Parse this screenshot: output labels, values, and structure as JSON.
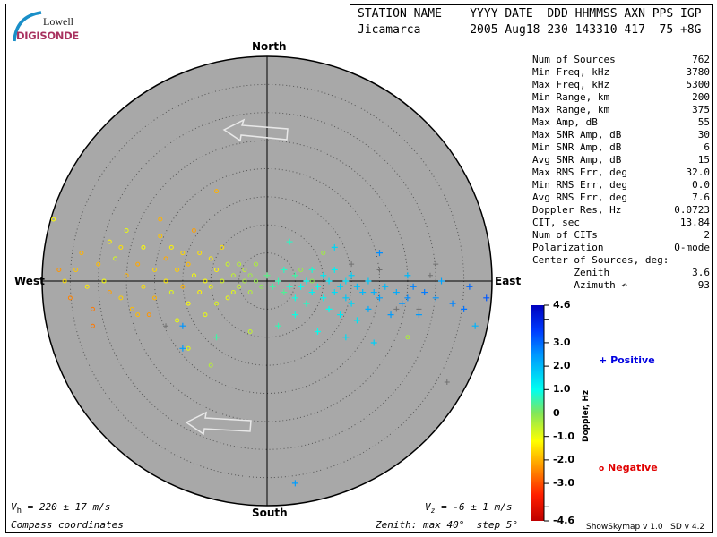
{
  "logo": {
    "line1": "Lowell",
    "line2": "DIGISONDE"
  },
  "header": {
    "labels": "STATION NAME    YYYY DATE  DDD HHMMSS AXN PPS IGP",
    "values": "Jicamarca       2005 Aug18 230 143310 417  75 +8G"
  },
  "compass": {
    "north": "North",
    "south": "South",
    "east": "East",
    "west": "West"
  },
  "stats": [
    {
      "label": "Num of Sources",
      "value": "762"
    },
    {
      "label": "Min Freq, kHz",
      "value": "3780"
    },
    {
      "label": "Max Freq, kHz",
      "value": "5300"
    },
    {
      "label": "Min Range, km",
      "value": "200"
    },
    {
      "label": "Max Range, km",
      "value": "375"
    },
    {
      "label": "Max Amp, dB",
      "value": "55"
    },
    {
      "label": "Max SNR Amp, dB",
      "value": "30"
    },
    {
      "label": "Min SNR Amp, dB",
      "value": "6"
    },
    {
      "label": "Avg SNR Amp, dB",
      "value": "15"
    },
    {
      "label": "Max RMS Err, deg",
      "value": "32.0"
    },
    {
      "label": "Min RMS Err, deg",
      "value": "0.0"
    },
    {
      "label": "Avg RMS Err, deg",
      "value": "7.6"
    },
    {
      "label": "Doppler Res, Hz",
      "value": "0.0723"
    },
    {
      "label": "CIT, sec",
      "value": "13.84"
    },
    {
      "label": "Num of CITs",
      "value": "2"
    },
    {
      "label": "Polarization",
      "value": "O-mode"
    },
    {
      "label": "Center of Sources, deg:",
      "value": ""
    },
    {
      "label": "       Zenith",
      "value": "3.6"
    },
    {
      "label": "       Azimuth ↶",
      "value": "93"
    }
  ],
  "footer": {
    "vh": "V",
    "vh_sub": "h",
    "vh_value": " = 220 ± 17 m/s",
    "vz": "V",
    "vz_sub": "z",
    "vz_value": " = -6 ± 1 m/s",
    "coords": "Compass coordinates",
    "zenith": "Zenith: max 40°  step 5°",
    "version": "ShowSkymap v 1.0   SD v 4.2"
  },
  "colorbar": {
    "label": "Doppler, Hz",
    "ticks": [
      "4.6",
      "3.0",
      "2.0",
      "1.0",
      "0",
      "-1.0",
      "-2.0",
      "-3.0",
      "-4.6"
    ],
    "range": [
      -4.6,
      4.6
    ]
  },
  "legend": {
    "positive": "Positive",
    "negative": "Negative",
    "positive_color": "#0000e0",
    "negative_color": "#e00000"
  },
  "colors": {
    "disk": "#a8a8a8",
    "unscored": "#707070"
  },
  "chart_data": {
    "type": "scatter",
    "projection": "polar skymap, compass coordinates",
    "zenith_max_deg": 40,
    "zenith_step_deg": 5,
    "point_format": "[east_deg, north_deg, doppler_hz]",
    "negative_points": [
      [
        -38,
        11,
        -1.2
      ],
      [
        -37,
        2,
        -2.3
      ],
      [
        -36,
        0,
        -1.5
      ],
      [
        -35,
        -3,
        -2.5
      ],
      [
        -34,
        2,
        -1.8
      ],
      [
        -33,
        5,
        -2.0
      ],
      [
        -32,
        -1,
        -1.4
      ],
      [
        -31,
        -5,
        -2.6
      ],
      [
        -30,
        3,
        -1.9
      ],
      [
        -29,
        0,
        -1.1
      ],
      [
        -28,
        7,
        -1.3
      ],
      [
        -28,
        -2,
        -2.2
      ],
      [
        -27,
        4,
        -0.8
      ],
      [
        -26,
        -3,
        -1.7
      ],
      [
        -25,
        1,
        -2.0
      ],
      [
        -25,
        9,
        -1.0
      ],
      [
        -24,
        -5,
        -1.9
      ],
      [
        -23,
        3,
        -2.1
      ],
      [
        -22,
        -1,
        -1.5
      ],
      [
        -22,
        6,
        -1.2
      ],
      [
        -21,
        -6,
        -2.3
      ],
      [
        -20,
        2,
        -1.6
      ],
      [
        -20,
        -3,
        -2.0
      ],
      [
        -19,
        8,
        -1.8
      ],
      [
        -18,
        0,
        -1.4
      ],
      [
        -18,
        4,
        -2.1
      ],
      [
        -17,
        -2,
        -0.9
      ],
      [
        -17,
        6,
        -1.3
      ],
      [
        -16,
        2,
        -1.7
      ],
      [
        -16,
        -7,
        -1.0
      ],
      [
        -15,
        -1,
        -2.0
      ],
      [
        -15,
        5,
        -1.6
      ],
      [
        -14,
        3,
        -1.9
      ],
      [
        -14,
        -4,
        -1.2
      ],
      [
        -13,
        1,
        -1.1
      ],
      [
        -13,
        9,
        -2.2
      ],
      [
        -12,
        -2,
        -1.3
      ],
      [
        -12,
        5,
        -1.5
      ],
      [
        -11,
        0,
        -1.2
      ],
      [
        -11,
        -6,
        -1.0
      ],
      [
        -10,
        4,
        -1.4
      ],
      [
        -10,
        -1,
        -1.1
      ],
      [
        -9,
        2,
        -1.3
      ],
      [
        -9,
        -4,
        -0.9
      ],
      [
        -9,
        16,
        -2.0
      ],
      [
        -8,
        0,
        -0.8
      ],
      [
        -8,
        6,
        -1.5
      ],
      [
        -7,
        -3,
        -1.0
      ],
      [
        -7,
        3,
        -0.7
      ],
      [
        -6,
        1,
        -0.6
      ],
      [
        -6,
        -2,
        -0.9
      ],
      [
        -5,
        3,
        -0.5
      ],
      [
        -5,
        -1,
        -0.7
      ],
      [
        -4,
        0,
        -0.4
      ],
      [
        -4,
        2,
        -0.6
      ],
      [
        -3,
        -2,
        -0.5
      ],
      [
        -3,
        1,
        -0.3
      ],
      [
        -2,
        0,
        -0.2
      ],
      [
        -2,
        3,
        -0.4
      ],
      [
        -1,
        -1,
        -0.1
      ],
      [
        -10,
        -15,
        -0.5
      ],
      [
        -23,
        -6,
        -1.9
      ],
      [
        -31,
        -8,
        -2.6
      ],
      [
        -19,
        11,
        -2.0
      ],
      [
        -26,
        6,
        -1.5
      ],
      [
        -3,
        -9,
        -0.6
      ],
      [
        -14,
        -12,
        -0.9
      ],
      [
        8,
        0,
        -0.1
      ],
      [
        6,
        2,
        -0.2
      ],
      [
        10,
        5,
        -0.3
      ],
      [
        25,
        -10,
        -0.4
      ]
    ],
    "positive_points": [
      [
        0,
        1,
        0.3
      ],
      [
        1,
        -1,
        0.5
      ],
      [
        2,
        0,
        0.6
      ],
      [
        3,
        -2,
        0.4
      ],
      [
        3,
        2,
        0.7
      ],
      [
        4,
        -1,
        0.8
      ],
      [
        5,
        1,
        0.5
      ],
      [
        5,
        -3,
        0.9
      ],
      [
        6,
        -1,
        1.0
      ],
      [
        7,
        0,
        1.1
      ],
      [
        7,
        -4,
        0.7
      ],
      [
        8,
        2,
        0.8
      ],
      [
        8,
        -2,
        1.2
      ],
      [
        9,
        -1,
        1.0
      ],
      [
        10,
        1,
        1.3
      ],
      [
        10,
        -3,
        1.1
      ],
      [
        11,
        0,
        1.4
      ],
      [
        11,
        -5,
        1.0
      ],
      [
        12,
        -2,
        1.5
      ],
      [
        12,
        2,
        1.2
      ],
      [
        13,
        -1,
        1.6
      ],
      [
        13,
        -6,
        1.3
      ],
      [
        14,
        0,
        1.5
      ],
      [
        14,
        -3,
        1.8
      ],
      [
        15,
        1,
        1.7
      ],
      [
        15,
        -4,
        1.6
      ],
      [
        16,
        -1,
        1.9
      ],
      [
        16,
        -7,
        1.4
      ],
      [
        17,
        -2,
        2.0
      ],
      [
        18,
        0,
        1.8
      ],
      [
        18,
        -5,
        2.2
      ],
      [
        19,
        -2,
        2.1
      ],
      [
        20,
        5,
        2.6
      ],
      [
        20,
        -3,
        2.3
      ],
      [
        21,
        -1,
        2.0
      ],
      [
        22,
        -6,
        2.4
      ],
      [
        23,
        -2,
        2.2
      ],
      [
        24,
        -4,
        2.5
      ],
      [
        25,
        1,
        2.0
      ],
      [
        25,
        -3,
        2.6
      ],
      [
        26,
        -1,
        2.7
      ],
      [
        27,
        -6,
        2.4
      ],
      [
        28,
        -2,
        2.8
      ],
      [
        30,
        -3,
        2.5
      ],
      [
        31,
        0,
        2.3
      ],
      [
        33,
        -4,
        2.7
      ],
      [
        35,
        -5,
        2.9
      ],
      [
        36,
        -1,
        3.0
      ],
      [
        39,
        -3,
        3.2
      ],
      [
        37,
        -8,
        2.1
      ],
      [
        5,
        -6,
        0.9
      ],
      [
        2,
        -8,
        0.6
      ],
      [
        9,
        -9,
        1.0
      ],
      [
        14,
        -10,
        1.5
      ],
      [
        19,
        -11,
        1.7
      ],
      [
        12,
        6,
        1.6
      ],
      [
        4,
        7,
        0.7
      ],
      [
        -15,
        -8,
        2.5
      ],
      [
        -15,
        -12,
        2.4
      ],
      [
        -9,
        -10,
        0.5
      ],
      [
        5,
        -36,
        2.4
      ]
    ],
    "unscored_points": [
      [
        30,
        3
      ],
      [
        27,
        -5
      ],
      [
        23,
        -5
      ],
      [
        20,
        2
      ],
      [
        15,
        3
      ],
      [
        29,
        1
      ],
      [
        -18,
        -8
      ],
      [
        32,
        -18
      ]
    ]
  }
}
